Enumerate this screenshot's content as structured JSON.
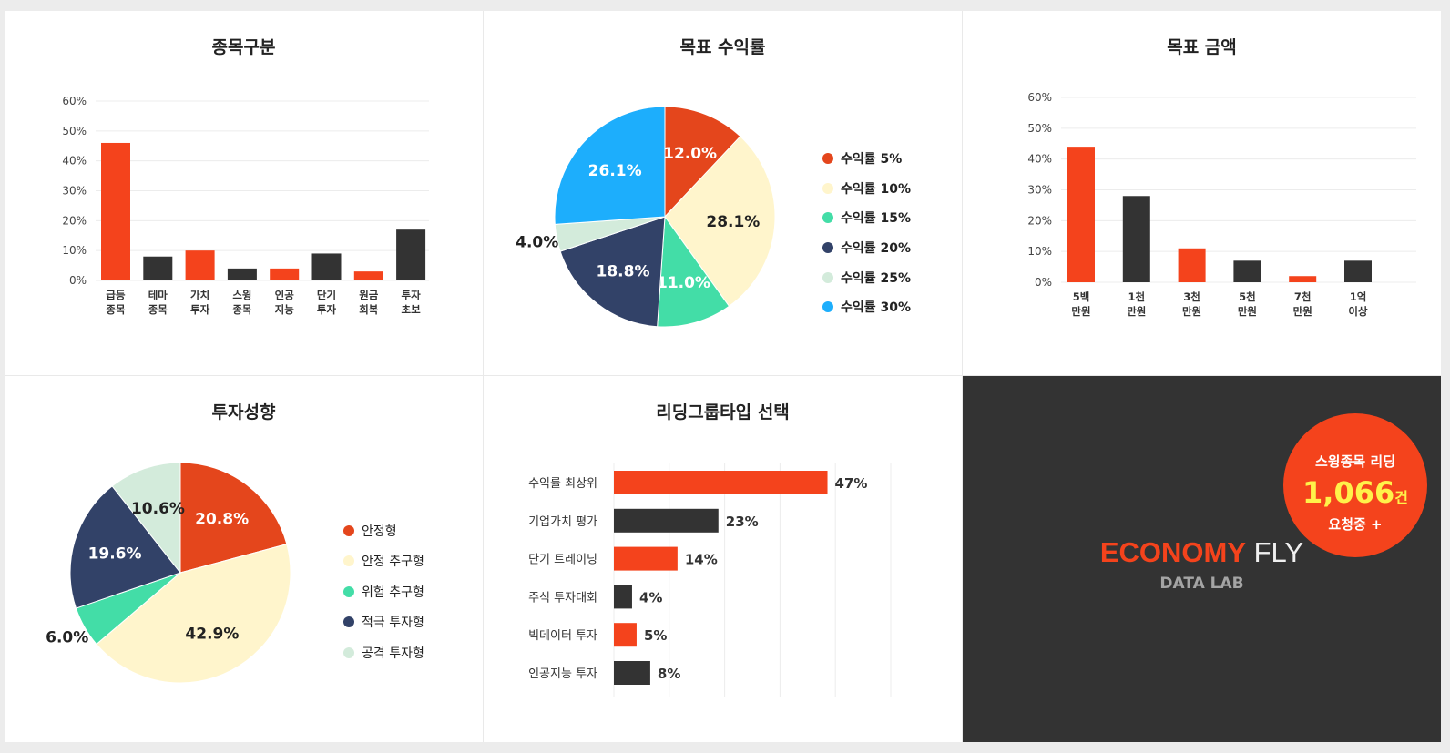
{
  "colors": {
    "accent": "#f4431c",
    "dark": "#333333",
    "promo_bg": "#333333",
    "highlight": "#fff24a"
  },
  "chart_data": [
    {
      "id": "stock-category",
      "type": "bar",
      "title": "종목구분",
      "categories": [
        [
          "급등",
          "종목"
        ],
        [
          "테마",
          "종목"
        ],
        [
          "가치",
          "투자"
        ],
        [
          "스윙",
          "종목"
        ],
        [
          "인공",
          "지능"
        ],
        [
          "단기",
          "투자"
        ],
        [
          "원금",
          "회복"
        ],
        [
          "투자",
          "초보"
        ]
      ],
      "values": [
        46,
        8,
        10,
        4,
        4,
        9,
        3,
        17
      ],
      "bar_colors": [
        "#f4431c",
        "#333333",
        "#f4431c",
        "#333333",
        "#f4431c",
        "#333333",
        "#f4431c",
        "#333333"
      ],
      "yticks": [
        "0%",
        "10%",
        "20%",
        "30%",
        "40%",
        "50%",
        "60%"
      ],
      "ylim": [
        0,
        60
      ],
      "grid": true
    },
    {
      "id": "target-return",
      "type": "pie",
      "title": "목표 수익률",
      "labels": [
        "수익률 5%",
        "수익률 10%",
        "수익률 15%",
        "수익률 20%",
        "수익률 25%",
        "수익률 30%"
      ],
      "values": [
        12.0,
        28.1,
        11.0,
        18.8,
        4.0,
        26.1
      ],
      "value_labels": [
        "12.0%",
        "28.1%",
        "11.0%",
        "18.8%",
        "4.0%",
        "26.1%"
      ],
      "colors": [
        "#e4461c",
        "#fff5cc",
        "#43dda7",
        "#324268",
        "#d3ebdb",
        "#1daefc"
      ],
      "label_colors": [
        "#ffffff",
        "#222222",
        "#ffffff",
        "#ffffff",
        "#222222",
        "#ffffff"
      ],
      "legend": "right"
    },
    {
      "id": "target-amount",
      "type": "bar",
      "title": "목표 금액",
      "categories": [
        [
          "5백",
          "만원"
        ],
        [
          "1천",
          "만원"
        ],
        [
          "3천",
          "만원"
        ],
        [
          "5천",
          "만원"
        ],
        [
          "7천",
          "만원"
        ],
        [
          "1억",
          "이상"
        ]
      ],
      "values": [
        44,
        28,
        11,
        7,
        2,
        7
      ],
      "bar_colors": [
        "#f4431c",
        "#333333",
        "#f4431c",
        "#333333",
        "#f4431c",
        "#333333"
      ],
      "yticks": [
        "0%",
        "10%",
        "20%",
        "30%",
        "40%",
        "50%",
        "60%"
      ],
      "ylim": [
        0,
        60
      ],
      "grid": true
    },
    {
      "id": "investment-style",
      "type": "pie",
      "title": "투자성향",
      "labels": [
        "안정형",
        "안정 추구형",
        "위험 추구형",
        "적극 투자형",
        "공격 투자형"
      ],
      "values": [
        20.8,
        42.9,
        6.0,
        19.6,
        10.6
      ],
      "value_labels": [
        "20.8%",
        "42.9%",
        "6.0%",
        "19.6%",
        "10.6%"
      ],
      "colors": [
        "#e4461c",
        "#fff5cc",
        "#43dda7",
        "#324268",
        "#d3ebdb"
      ],
      "label_colors": [
        "#ffffff",
        "#222222",
        "#222222",
        "#ffffff",
        "#222222"
      ],
      "legend": "right"
    },
    {
      "id": "leading-group-type",
      "type": "bar",
      "orientation": "horizontal",
      "title": "리딩그룹타입 선택",
      "categories": [
        "수익률 최상위",
        "기업가치 평가",
        "단기 트레이닝",
        "주식 투자대회",
        "빅데이터 투자",
        "인공지능 투자"
      ],
      "values": [
        47,
        23,
        14,
        4,
        5,
        8
      ],
      "value_labels": [
        "47%",
        "23%",
        "14%",
        "4%",
        "5%",
        "8%"
      ],
      "bar_colors": [
        "#f4431c",
        "#333333",
        "#f4431c",
        "#333333",
        "#f4431c",
        "#333333"
      ],
      "xlim": [
        0,
        50
      ],
      "grid": true
    }
  ],
  "promo": {
    "brand_part1": "ECONOMY",
    "brand_part2": "FLY",
    "sub": "DATA LAB",
    "badge_title": "스윙종목 리딩",
    "badge_count": "1,066",
    "badge_unit": "건",
    "badge_status": "요청중 +"
  }
}
